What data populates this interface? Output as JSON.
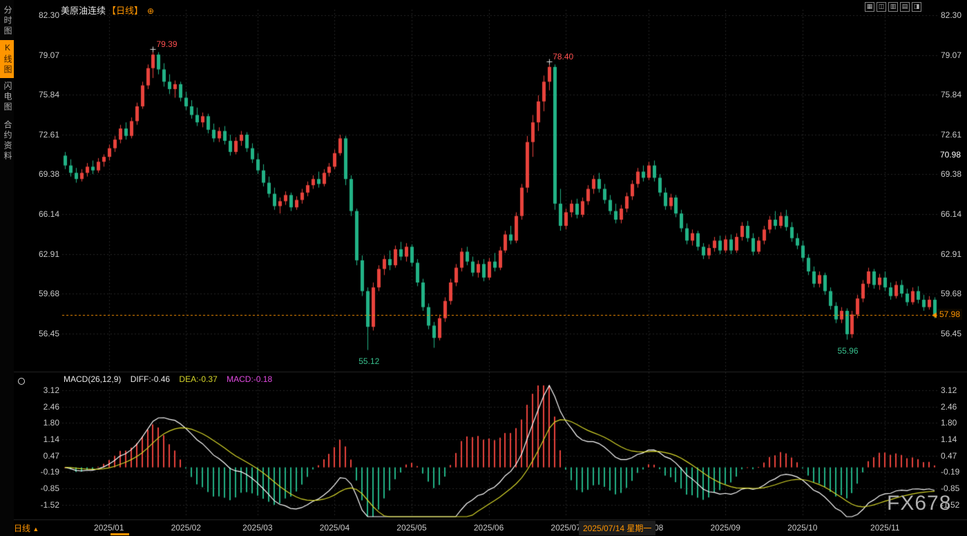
{
  "header": {
    "title": "美原油连续",
    "period_tag": "【日线】",
    "settings_icon": "⊕",
    "window_icons": [
      "▦",
      "◫",
      "▥",
      "▤",
      "◨"
    ]
  },
  "sidebar": {
    "items": [
      {
        "label": "分时图",
        "active": false
      },
      {
        "label": "K线图",
        "active": true
      },
      {
        "label": "闪电图",
        "active": false
      },
      {
        "label": "合约资料",
        "active": false
      }
    ]
  },
  "markers": {
    "upper_label": "70.98",
    "last_price": "57.98"
  },
  "macd_header": {
    "name": "MACD(26,12,9)",
    "diff_label": "DIFF:-0.46",
    "dea_label": "DEA:-0.37",
    "macd_label": "MACD:-0.18"
  },
  "bottom": {
    "period_label": "日线",
    "period_arrow": "▲",
    "crosshair_date": "2025/07/14 星期一",
    "watermark": "FX678"
  },
  "colors": {
    "up": "#e8433c",
    "down": "#22b286",
    "accent": "#ff9500",
    "grid": "#242424",
    "diff_line": "#ffffff",
    "dea_line": "#d6d62a",
    "macd_value_text": "#e14ae1",
    "axis_text": "#c9c9c9"
  },
  "chart_data": [
    {
      "type": "candlestick",
      "title": "美原油连续【日线】 (WTI crude oil continuous, daily)",
      "y_ticks": [
        82.3,
        79.07,
        75.84,
        72.61,
        69.38,
        66.14,
        62.91,
        59.68,
        56.45
      ],
      "last_close": 57.98,
      "last_close_label": "57.98",
      "upper_marker": 70.98,
      "upper_marker_label": "70.98",
      "x_months": [
        {
          "label": "2025/01",
          "idx": 8
        },
        {
          "label": "2025/02",
          "idx": 22
        },
        {
          "label": "2025/03",
          "idx": 35
        },
        {
          "label": "2025/04",
          "idx": 49
        },
        {
          "label": "2025/05",
          "idx": 63
        },
        {
          "label": "2025/06",
          "idx": 77
        },
        {
          "label": "2025/07",
          "idx": 91
        },
        {
          "label": "2025/08",
          "idx": 106
        },
        {
          "label": "2025/09",
          "idx": 120
        },
        {
          "label": "2025/10",
          "idx": 134
        },
        {
          "label": "2025/11",
          "idx": 149
        }
      ],
      "annotations": [
        {
          "text": "79.39",
          "idx": 16,
          "price": 79.39,
          "type": "high"
        },
        {
          "text": "78.40",
          "idx": 88,
          "price": 78.4,
          "type": "high"
        },
        {
          "text": "55.12",
          "idx": 55,
          "price": 55.12,
          "type": "low"
        },
        {
          "text": "55.96",
          "idx": 142,
          "price": 55.96,
          "type": "low"
        }
      ],
      "ohlc": [
        [
          70.9,
          71.2,
          69.8,
          70.1
        ],
        [
          70.1,
          70.6,
          69.2,
          69.5
        ],
        [
          69.5,
          69.9,
          68.7,
          69.0
        ],
        [
          69.0,
          69.8,
          68.8,
          69.5
        ],
        [
          69.5,
          70.3,
          69.2,
          70.0
        ],
        [
          70.0,
          70.5,
          69.4,
          69.7
        ],
        [
          69.7,
          70.7,
          69.5,
          70.4
        ],
        [
          70.4,
          71.0,
          70.0,
          70.8
        ],
        [
          70.8,
          71.8,
          70.5,
          71.5
        ],
        [
          71.5,
          72.5,
          71.2,
          72.2
        ],
        [
          72.2,
          73.4,
          71.9,
          73.1
        ],
        [
          73.1,
          73.6,
          72.2,
          72.5
        ],
        [
          72.5,
          74.0,
          72.3,
          73.7
        ],
        [
          73.7,
          75.2,
          73.4,
          74.9
        ],
        [
          74.9,
          76.9,
          74.7,
          76.6
        ],
        [
          76.6,
          78.3,
          76.3,
          78.0
        ],
        [
          78.0,
          79.39,
          77.2,
          79.1
        ],
        [
          79.1,
          79.3,
          77.5,
          77.9
        ],
        [
          77.9,
          78.4,
          76.5,
          76.9
        ],
        [
          76.9,
          77.5,
          75.9,
          76.3
        ],
        [
          76.3,
          77.0,
          75.6,
          76.7
        ],
        [
          76.7,
          76.9,
          75.3,
          75.6
        ],
        [
          75.6,
          76.1,
          74.6,
          74.9
        ],
        [
          74.9,
          75.4,
          73.9,
          74.2
        ],
        [
          74.2,
          74.8,
          73.3,
          73.6
        ],
        [
          73.6,
          74.4,
          73.2,
          74.1
        ],
        [
          74.1,
          74.3,
          72.7,
          73.0
        ],
        [
          73.0,
          73.5,
          72.0,
          72.3
        ],
        [
          72.3,
          73.2,
          72.0,
          72.9
        ],
        [
          72.9,
          73.3,
          71.8,
          72.1
        ],
        [
          72.1,
          72.6,
          70.9,
          71.2
        ],
        [
          71.2,
          72.4,
          71.0,
          72.1
        ],
        [
          72.1,
          72.9,
          71.7,
          72.6
        ],
        [
          72.6,
          72.8,
          71.2,
          71.5
        ],
        [
          71.5,
          71.9,
          70.3,
          70.6
        ],
        [
          70.6,
          71.1,
          69.4,
          69.7
        ],
        [
          69.7,
          70.2,
          68.4,
          68.7
        ],
        [
          68.7,
          69.2,
          67.5,
          67.8
        ],
        [
          67.8,
          68.3,
          66.5,
          66.8
        ],
        [
          66.8,
          67.5,
          66.2,
          67.2
        ],
        [
          67.2,
          68.0,
          66.9,
          67.7
        ],
        [
          67.7,
          67.9,
          66.4,
          66.7
        ],
        [
          66.7,
          67.6,
          66.5,
          67.3
        ],
        [
          67.3,
          68.2,
          67.0,
          67.9
        ],
        [
          67.9,
          68.8,
          67.6,
          68.5
        ],
        [
          68.5,
          69.3,
          68.2,
          69.0
        ],
        [
          69.0,
          69.6,
          68.3,
          68.6
        ],
        [
          68.6,
          69.8,
          68.4,
          69.5
        ],
        [
          69.5,
          70.3,
          69.2,
          70.0
        ],
        [
          70.0,
          71.4,
          69.8,
          71.1
        ],
        [
          71.1,
          72.6,
          70.9,
          72.3
        ],
        [
          72.3,
          72.5,
          68.5,
          69.0
        ],
        [
          69.0,
          69.3,
          66.0,
          66.4
        ],
        [
          66.4,
          66.6,
          62.0,
          62.4
        ],
        [
          62.4,
          62.8,
          59.5,
          59.9
        ],
        [
          59.9,
          60.2,
          55.12,
          57.0
        ],
        [
          57.0,
          60.6,
          56.7,
          60.2
        ],
        [
          60.2,
          62.0,
          59.9,
          61.7
        ],
        [
          61.7,
          62.8,
          61.2,
          62.5
        ],
        [
          62.5,
          63.2,
          61.6,
          62.0
        ],
        [
          62.0,
          63.6,
          61.8,
          63.3
        ],
        [
          63.3,
          63.9,
          62.4,
          62.7
        ],
        [
          62.7,
          63.8,
          62.3,
          63.5
        ],
        [
          63.5,
          63.7,
          61.9,
          62.2
        ],
        [
          62.2,
          62.5,
          60.3,
          60.6
        ],
        [
          60.6,
          60.9,
          58.3,
          58.6
        ],
        [
          58.6,
          58.9,
          56.8,
          57.1
        ],
        [
          57.1,
          57.4,
          55.3,
          56.1
        ],
        [
          56.1,
          58.0,
          55.9,
          57.7
        ],
        [
          57.7,
          59.4,
          57.4,
          59.1
        ],
        [
          59.1,
          60.9,
          58.8,
          60.6
        ],
        [
          60.6,
          62.1,
          60.3,
          61.8
        ],
        [
          61.8,
          63.4,
          61.5,
          63.1
        ],
        [
          63.1,
          63.5,
          62.0,
          62.3
        ],
        [
          62.3,
          62.7,
          61.1,
          61.4
        ],
        [
          61.4,
          62.4,
          61.0,
          62.1
        ],
        [
          62.1,
          62.5,
          60.7,
          61.0
        ],
        [
          61.0,
          62.6,
          60.8,
          62.3
        ],
        [
          62.3,
          63.0,
          61.5,
          61.8
        ],
        [
          61.8,
          63.5,
          61.6,
          63.2
        ],
        [
          63.2,
          64.8,
          63.0,
          64.5
        ],
        [
          64.5,
          65.2,
          63.7,
          64.0
        ],
        [
          64.0,
          66.3,
          63.8,
          66.0
        ],
        [
          66.0,
          68.6,
          65.7,
          68.3
        ],
        [
          68.3,
          72.5,
          67.9,
          72.0
        ],
        [
          72.0,
          74.2,
          70.8,
          73.6
        ],
        [
          73.6,
          75.8,
          72.9,
          75.3
        ],
        [
          75.3,
          77.4,
          74.5,
          76.9
        ],
        [
          76.9,
          78.4,
          76.2,
          78.1
        ],
        [
          78.1,
          78.3,
          66.5,
          67.0
        ],
        [
          67.0,
          68.2,
          64.8,
          65.2
        ],
        [
          65.2,
          66.6,
          64.9,
          66.3
        ],
        [
          66.3,
          67.3,
          65.9,
          67.0
        ],
        [
          67.0,
          67.4,
          65.8,
          66.1
        ],
        [
          66.1,
          67.5,
          65.9,
          67.2
        ],
        [
          67.2,
          68.5,
          66.9,
          68.2
        ],
        [
          68.2,
          69.3,
          67.8,
          69.0
        ],
        [
          69.0,
          69.5,
          67.9,
          68.2
        ],
        [
          68.2,
          68.6,
          67.0,
          67.3
        ],
        [
          67.3,
          67.7,
          66.1,
          66.4
        ],
        [
          66.4,
          67.0,
          65.4,
          65.7
        ],
        [
          65.7,
          66.9,
          65.4,
          66.6
        ],
        [
          66.6,
          67.9,
          66.3,
          67.6
        ],
        [
          67.6,
          68.9,
          67.3,
          68.6
        ],
        [
          68.6,
          69.9,
          68.3,
          69.6
        ],
        [
          69.6,
          70.1,
          68.8,
          69.1
        ],
        [
          69.1,
          70.4,
          68.9,
          70.1
        ],
        [
          70.1,
          70.5,
          68.8,
          69.1
        ],
        [
          69.1,
          69.4,
          67.6,
          67.9
        ],
        [
          67.9,
          68.3,
          66.5,
          66.8
        ],
        [
          66.8,
          67.8,
          66.5,
          67.5
        ],
        [
          67.5,
          67.7,
          65.9,
          66.2
        ],
        [
          66.2,
          66.5,
          64.7,
          65.0
        ],
        [
          65.0,
          65.4,
          63.7,
          64.0
        ],
        [
          64.0,
          64.9,
          63.6,
          64.6
        ],
        [
          64.6,
          64.8,
          63.2,
          63.5
        ],
        [
          63.5,
          63.8,
          62.5,
          62.8
        ],
        [
          62.8,
          63.7,
          62.5,
          63.4
        ],
        [
          63.4,
          64.3,
          63.1,
          64.0
        ],
        [
          64.0,
          64.4,
          62.9,
          63.2
        ],
        [
          63.2,
          64.4,
          63.0,
          64.1
        ],
        [
          64.1,
          64.5,
          62.9,
          63.2
        ],
        [
          63.2,
          64.6,
          63.0,
          64.3
        ],
        [
          64.3,
          65.5,
          64.0,
          65.2
        ],
        [
          65.2,
          65.6,
          63.9,
          64.2
        ],
        [
          64.2,
          64.6,
          62.8,
          63.1
        ],
        [
          63.1,
          64.3,
          62.9,
          64.0
        ],
        [
          64.0,
          65.2,
          63.7,
          64.9
        ],
        [
          64.9,
          66.0,
          64.6,
          65.7
        ],
        [
          65.7,
          66.4,
          64.9,
          65.2
        ],
        [
          65.2,
          66.3,
          65.0,
          66.0
        ],
        [
          66.0,
          66.5,
          64.8,
          65.1
        ],
        [
          65.1,
          65.5,
          63.9,
          64.2
        ],
        [
          64.2,
          64.6,
          63.3,
          63.6
        ],
        [
          63.6,
          64.0,
          62.3,
          62.6
        ],
        [
          62.6,
          62.9,
          61.2,
          61.5
        ],
        [
          61.5,
          61.9,
          60.2,
          60.5
        ],
        [
          60.5,
          61.5,
          60.2,
          61.2
        ],
        [
          61.2,
          61.4,
          59.6,
          59.9
        ],
        [
          59.9,
          60.2,
          58.4,
          58.7
        ],
        [
          58.7,
          59.0,
          57.3,
          57.6
        ],
        [
          57.6,
          58.6,
          57.3,
          58.3
        ],
        [
          58.3,
          58.5,
          55.96,
          56.4
        ],
        [
          56.4,
          58.3,
          56.1,
          58.0
        ],
        [
          58.0,
          59.6,
          57.7,
          59.3
        ],
        [
          59.3,
          60.8,
          59.0,
          60.5
        ],
        [
          60.5,
          61.8,
          60.2,
          61.5
        ],
        [
          61.5,
          61.7,
          60.1,
          60.4
        ],
        [
          60.4,
          61.3,
          60.0,
          61.0
        ],
        [
          61.0,
          61.5,
          59.9,
          60.2
        ],
        [
          60.2,
          60.6,
          59.2,
          59.5
        ],
        [
          59.5,
          60.7,
          59.3,
          60.4
        ],
        [
          60.4,
          60.8,
          59.4,
          59.7
        ],
        [
          59.7,
          60.1,
          58.7,
          59.0
        ],
        [
          59.0,
          60.2,
          58.8,
          59.9
        ],
        [
          59.9,
          60.3,
          58.9,
          59.2
        ],
        [
          59.2,
          59.6,
          58.3,
          58.6
        ],
        [
          58.6,
          59.5,
          58.4,
          59.2
        ],
        [
          59.2,
          59.4,
          57.7,
          57.98
        ]
      ]
    },
    {
      "type": "macd",
      "params": "(26,12,9)",
      "histogram_rule": "2*(DIFF-DEA), computed from the candlestick closes above",
      "current": {
        "DIFF": -0.46,
        "DEA": -0.37,
        "MACD": -0.18
      },
      "y_ticks": [
        3.12,
        2.46,
        1.8,
        1.14,
        0.47,
        -0.19,
        -0.85,
        -1.52
      ]
    }
  ]
}
